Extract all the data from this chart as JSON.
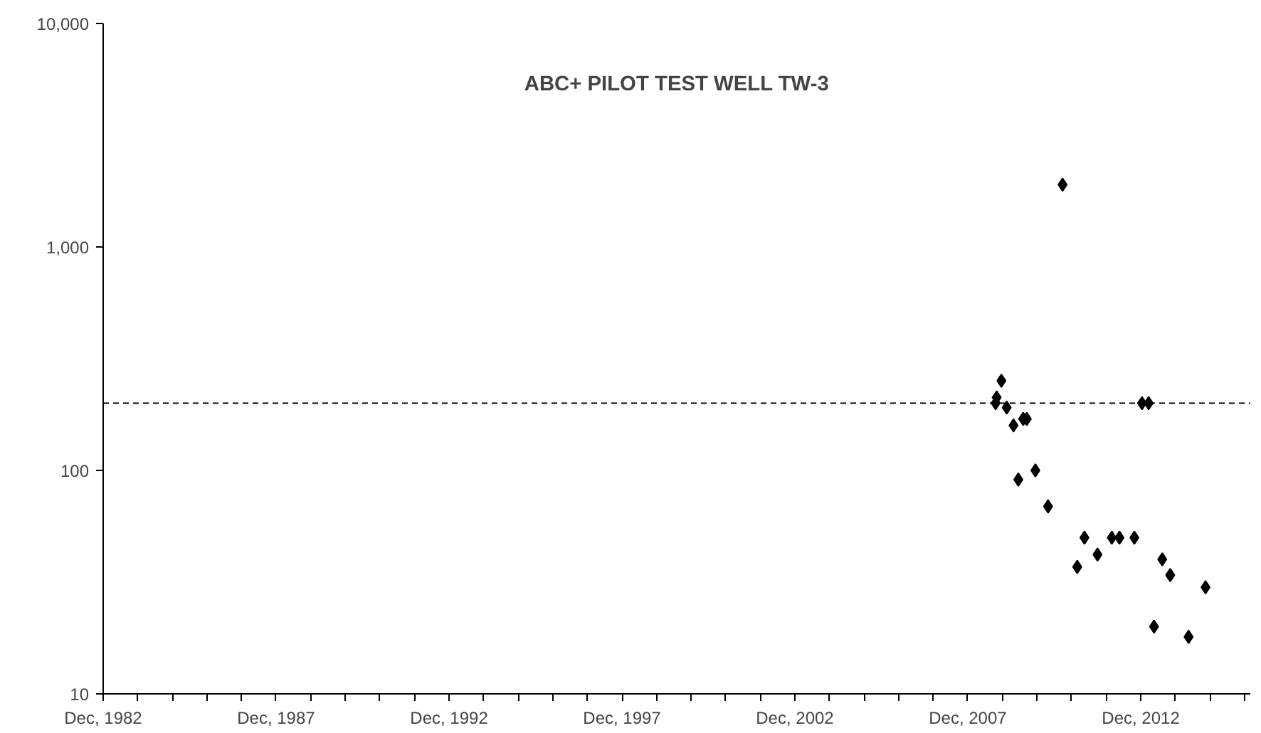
{
  "chart_data": {
    "type": "scatter",
    "title": "ABC+ PILOT TEST WELL TW-3",
    "x": [
      "2008-09-20",
      "2008-10-01",
      "2008-11-20",
      "2009-01-15",
      "2009-03-28",
      "2009-05-18",
      "2009-07-08",
      "2009-08-15",
      "2009-11-14",
      "2010-03-28",
      "2010-08-28",
      "2011-01-30",
      "2011-04-16",
      "2011-09-01",
      "2012-01-30",
      "2012-04-20",
      "2012-09-24",
      "2012-12-14",
      "2013-02-22",
      "2013-04-20",
      "2013-07-16",
      "2013-10-08",
      "2014-04-20",
      "2014-10-16"
    ],
    "series": [
      {
        "color": "#000000",
        "values": [
          200,
          212,
          252,
          191,
          159,
          91,
          170,
          170,
          100,
          69,
          1900,
          37,
          50,
          42,
          50,
          50,
          50,
          200,
          200,
          20,
          40,
          34,
          18,
          30
        ]
      }
    ],
    "log": "y",
    "marker": "diamond",
    "grid": false,
    "xlim": [
      "1982-12-01",
      "2016-02-01"
    ],
    "xticks": [
      {
        "value": "1982-12-01",
        "label": "Dec, 1982"
      },
      {
        "value": "1983-12-01",
        "label": null
      },
      {
        "value": "1984-12-01",
        "label": null
      },
      {
        "value": "1985-12-01",
        "label": null
      },
      {
        "value": "1986-12-01",
        "label": null
      },
      {
        "value": "1987-12-01",
        "label": "Dec, 1987"
      },
      {
        "value": "1988-12-01",
        "label": null
      },
      {
        "value": "1989-12-01",
        "label": null
      },
      {
        "value": "1990-12-01",
        "label": null
      },
      {
        "value": "1991-12-01",
        "label": null
      },
      {
        "value": "1992-12-01",
        "label": "Dec, 1992"
      },
      {
        "value": "1993-12-01",
        "label": null
      },
      {
        "value": "1994-12-01",
        "label": null
      },
      {
        "value": "1995-12-01",
        "label": null
      },
      {
        "value": "1996-12-01",
        "label": null
      },
      {
        "value": "1997-12-01",
        "label": "Dec, 1997"
      },
      {
        "value": "1998-12-01",
        "label": null
      },
      {
        "value": "1999-12-01",
        "label": null
      },
      {
        "value": "2000-12-01",
        "label": null
      },
      {
        "value": "2001-12-01",
        "label": null
      },
      {
        "value": "2002-12-01",
        "label": "Dec, 2002"
      },
      {
        "value": "2003-12-01",
        "label": null
      },
      {
        "value": "2004-12-01",
        "label": null
      },
      {
        "value": "2005-12-01",
        "label": null
      },
      {
        "value": "2006-12-01",
        "label": null
      },
      {
        "value": "2007-12-01",
        "label": "Dec, 2007"
      },
      {
        "value": "2008-12-01",
        "label": null
      },
      {
        "value": "2009-12-01",
        "label": null
      },
      {
        "value": "2010-12-01",
        "label": null
      },
      {
        "value": "2011-12-01",
        "label": null
      },
      {
        "value": "2012-12-01",
        "label": "Dec, 2012"
      },
      {
        "value": "2013-12-01",
        "label": null
      },
      {
        "value": "2014-12-01",
        "label": null
      },
      {
        "value": "2015-12-01",
        "label": null
      }
    ],
    "ylim": [
      10,
      10000
    ],
    "yticks": [
      10,
      100,
      {
        "value": 1000,
        "label": "1,000"
      },
      {
        "value": 10000,
        "label": "10,000"
      }
    ],
    "ref_lines": [
      {
        "axis": "y",
        "value": 200,
        "line_style": "dashed",
        "color": "#000000"
      }
    ]
  }
}
